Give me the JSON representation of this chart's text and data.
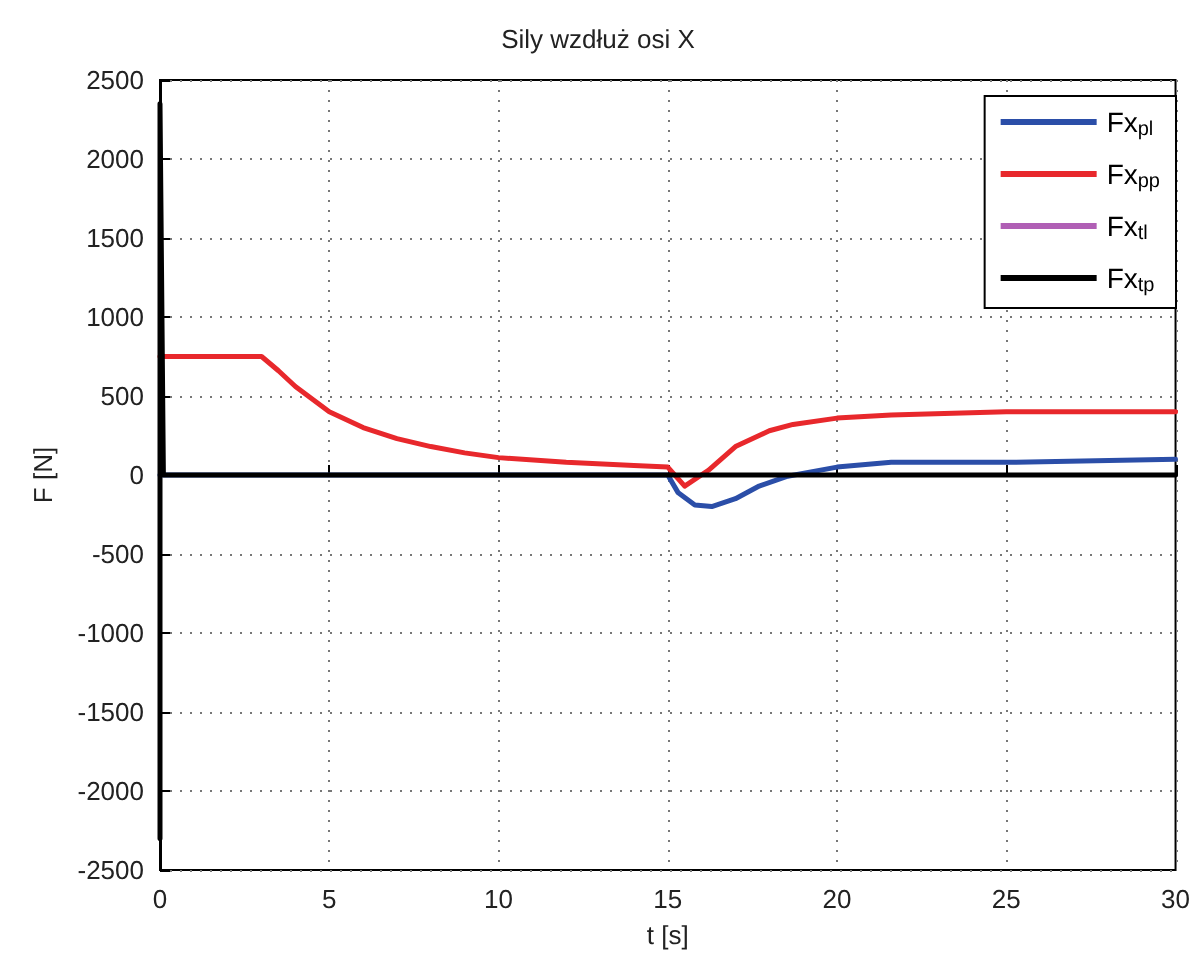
{
  "chart_data": {
    "type": "line",
    "title": "Sily wzdłuż osi X",
    "xlabel": "t [s]",
    "ylabel": "F [N]",
    "xlim": [
      0,
      30
    ],
    "xticks": [
      0,
      5,
      10,
      15,
      20,
      25,
      30
    ],
    "ylim": [
      -2500,
      2500
    ],
    "yticks": [
      -2500,
      -2000,
      -1500,
      -1000,
      -500,
      0,
      500,
      1000,
      1500,
      2000,
      2500
    ],
    "grid": true,
    "legend": "top right",
    "marker": "none",
    "line_style": "solid",
    "series": [
      {
        "name": "Fx$_{pl}$",
        "color": "#2b4ea8",
        "x": [
          0,
          15,
          15.3,
          15.8,
          16.3,
          17,
          17.7,
          18.5,
          20,
          21.6,
          25,
          30
        ],
        "values": [
          0,
          0,
          -110,
          -190,
          -200,
          -150,
          -70,
          -10,
          50,
          80,
          80,
          100
        ]
      },
      {
        "name": "Fx$_{pp}$",
        "color": "#e8282c",
        "x": [
          0,
          3,
          3.5,
          4,
          5,
          6,
          7,
          8,
          9,
          10,
          12,
          14,
          15,
          15.5,
          16.2,
          17,
          18,
          18.7,
          20,
          21.6,
          25,
          30
        ],
        "values": [
          750,
          750,
          660,
          560,
          400,
          300,
          230,
          180,
          140,
          110,
          80,
          60,
          50,
          -70,
          30,
          180,
          280,
          320,
          360,
          380,
          400,
          400
        ]
      },
      {
        "name": "Fx$_{tl}$",
        "color": "#b05fb5"
      },
      {
        "name": "Fx$_{tp}$",
        "color": "#000000",
        "x": [
          0,
          0,
          0.1,
          30
        ],
        "values": [
          -2300,
          2350,
          0,
          0
        ]
      }
    ]
  }
}
